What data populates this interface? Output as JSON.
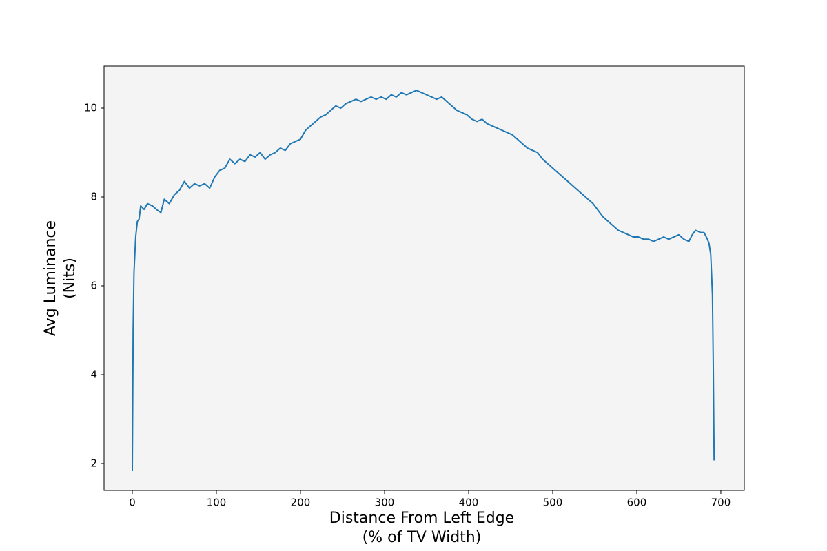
{
  "chart_data": {
    "type": "line",
    "xlabel": [
      "Distance From Left Edge",
      "(% of TV Width)"
    ],
    "ylabel": [
      "Avg Luminance",
      "(Nits)"
    ],
    "xlim": [
      -33.6,
      727.9
    ],
    "ylim": [
      1.395,
      10.946
    ],
    "xticks": [
      0,
      100,
      200,
      300,
      400,
      500,
      600,
      700
    ],
    "yticks": [
      2,
      4,
      6,
      8,
      10
    ],
    "background": "#f4f4f4",
    "series": [
      {
        "color": "#1f77b4",
        "x": [
          0,
          1,
          2,
          4,
          6,
          8,
          10,
          14,
          18,
          24,
          30,
          34,
          38,
          44,
          50,
          56,
          62,
          68,
          74,
          80,
          86,
          92,
          98,
          104,
          110,
          116,
          122,
          128,
          134,
          140,
          146,
          152,
          158,
          164,
          170,
          176,
          182,
          188,
          194,
          200,
          206,
          212,
          218,
          224,
          230,
          236,
          242,
          248,
          254,
          260,
          266,
          272,
          278,
          284,
          290,
          296,
          302,
          308,
          314,
          320,
          326,
          332,
          338,
          344,
          350,
          356,
          362,
          368,
          374,
          380,
          386,
          392,
          398,
          404,
          410,
          416,
          422,
          428,
          434,
          440,
          446,
          452,
          458,
          464,
          470,
          476,
          482,
          488,
          494,
          500,
          506,
          512,
          518,
          524,
          530,
          536,
          542,
          548,
          554,
          560,
          566,
          572,
          578,
          584,
          590,
          596,
          602,
          608,
          614,
          620,
          626,
          632,
          638,
          644,
          650,
          656,
          662,
          666,
          670,
          676,
          680,
          684,
          686,
          688,
          690,
          691,
          692
        ],
        "values": [
          1.83,
          5.0,
          6.3,
          7.1,
          7.45,
          7.5,
          7.8,
          7.72,
          7.85,
          7.8,
          7.7,
          7.65,
          7.95,
          7.85,
          8.05,
          8.15,
          8.35,
          8.2,
          8.3,
          8.25,
          8.3,
          8.2,
          8.45,
          8.6,
          8.65,
          8.85,
          8.75,
          8.85,
          8.8,
          8.95,
          8.9,
          9.0,
          8.85,
          8.95,
          9.0,
          9.1,
          9.05,
          9.2,
          9.25,
          9.3,
          9.5,
          9.6,
          9.7,
          9.8,
          9.85,
          9.95,
          10.05,
          10.0,
          10.1,
          10.15,
          10.2,
          10.15,
          10.2,
          10.25,
          10.2,
          10.25,
          10.2,
          10.3,
          10.25,
          10.35,
          10.3,
          10.35,
          10.4,
          10.35,
          10.3,
          10.25,
          10.2,
          10.25,
          10.15,
          10.05,
          9.95,
          9.9,
          9.85,
          9.75,
          9.7,
          9.75,
          9.65,
          9.6,
          9.55,
          9.5,
          9.45,
          9.4,
          9.3,
          9.2,
          9.1,
          9.05,
          9.0,
          8.85,
          8.75,
          8.65,
          8.55,
          8.45,
          8.35,
          8.25,
          8.15,
          8.05,
          7.95,
          7.85,
          7.7,
          7.55,
          7.45,
          7.35,
          7.25,
          7.2,
          7.15,
          7.1,
          7.1,
          7.05,
          7.05,
          7.0,
          7.05,
          7.1,
          7.05,
          7.1,
          7.15,
          7.05,
          7.0,
          7.15,
          7.25,
          7.2,
          7.2,
          7.05,
          6.95,
          6.7,
          5.8,
          4.2,
          2.07
        ]
      }
    ]
  }
}
